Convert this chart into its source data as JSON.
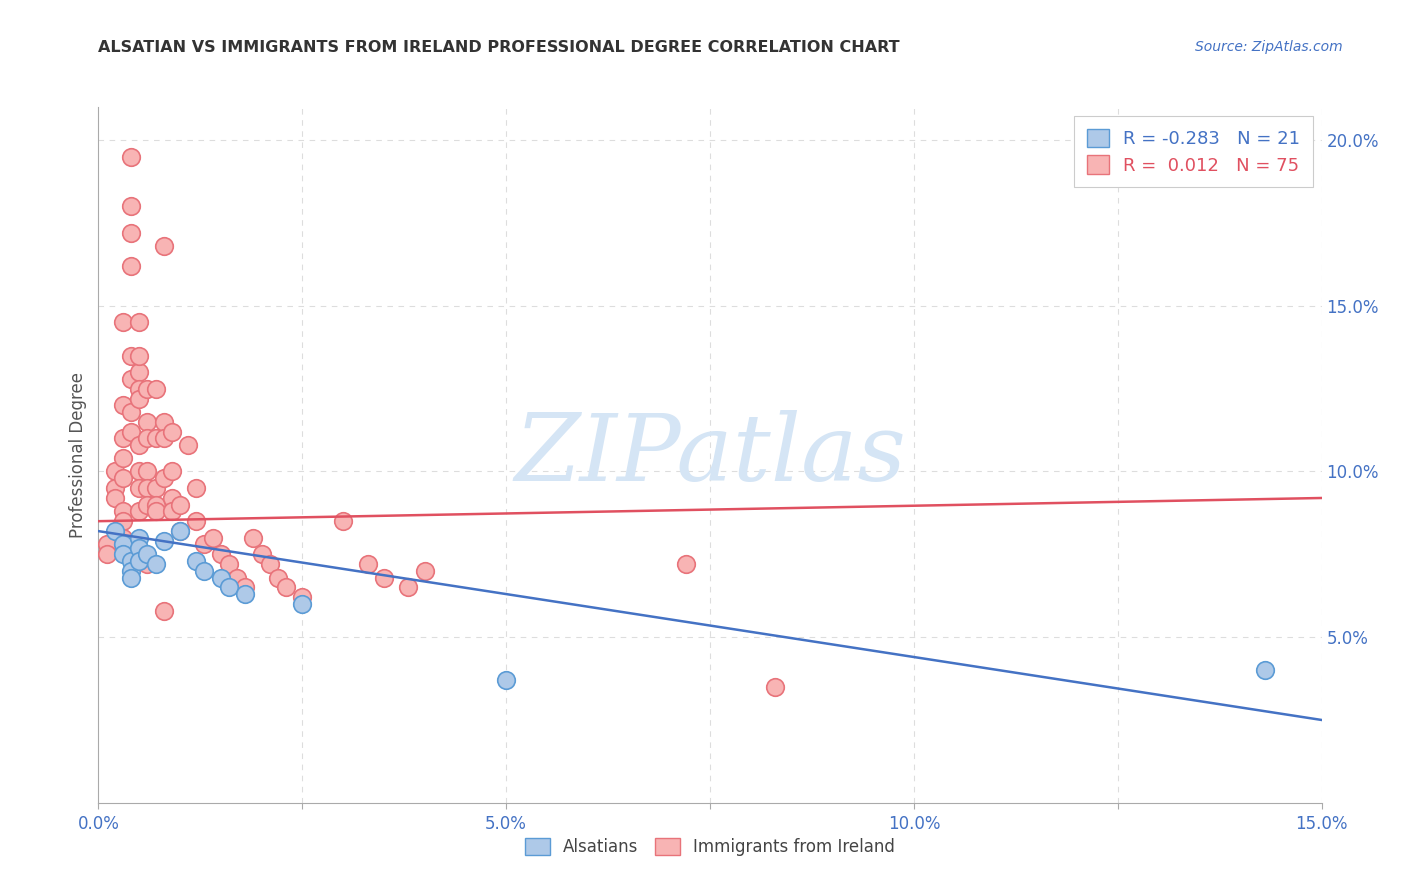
{
  "title": "ALSATIAN VS IMMIGRANTS FROM IRELAND PROFESSIONAL DEGREE CORRELATION CHART",
  "source": "Source: ZipAtlas.com",
  "ylabel": "Professional Degree",
  "xlim": [
    0.0,
    0.15
  ],
  "ylim": [
    0.0,
    0.21
  ],
  "legend_r_blue": "-0.283",
  "legend_n_blue": "21",
  "legend_r_pink": "0.012",
  "legend_n_pink": "75",
  "blue_color": "#aec9e8",
  "pink_color": "#f8b4b4",
  "blue_edge_color": "#5b9bd5",
  "pink_edge_color": "#e8737a",
  "blue_line_color": "#4472c4",
  "pink_line_color": "#e05060",
  "watermark_color": "#d5e5f5",
  "background_color": "#ffffff",
  "grid_color": "#dddddd",
  "blue_points": [
    [
      0.002,
      0.082
    ],
    [
      0.003,
      0.078
    ],
    [
      0.003,
      0.075
    ],
    [
      0.004,
      0.073
    ],
    [
      0.004,
      0.07
    ],
    [
      0.004,
      0.068
    ],
    [
      0.005,
      0.08
    ],
    [
      0.005,
      0.077
    ],
    [
      0.005,
      0.073
    ],
    [
      0.006,
      0.075
    ],
    [
      0.007,
      0.072
    ],
    [
      0.008,
      0.079
    ],
    [
      0.01,
      0.082
    ],
    [
      0.012,
      0.073
    ],
    [
      0.013,
      0.07
    ],
    [
      0.015,
      0.068
    ],
    [
      0.016,
      0.065
    ],
    [
      0.018,
      0.063
    ],
    [
      0.025,
      0.06
    ],
    [
      0.05,
      0.037
    ],
    [
      0.143,
      0.04
    ]
  ],
  "pink_points": [
    [
      0.001,
      0.078
    ],
    [
      0.001,
      0.075
    ],
    [
      0.002,
      0.1
    ],
    [
      0.002,
      0.095
    ],
    [
      0.002,
      0.092
    ],
    [
      0.003,
      0.145
    ],
    [
      0.003,
      0.12
    ],
    [
      0.003,
      0.11
    ],
    [
      0.003,
      0.104
    ],
    [
      0.003,
      0.098
    ],
    [
      0.003,
      0.088
    ],
    [
      0.003,
      0.085
    ],
    [
      0.003,
      0.08
    ],
    [
      0.004,
      0.195
    ],
    [
      0.004,
      0.18
    ],
    [
      0.004,
      0.172
    ],
    [
      0.004,
      0.162
    ],
    [
      0.004,
      0.135
    ],
    [
      0.004,
      0.128
    ],
    [
      0.004,
      0.118
    ],
    [
      0.004,
      0.112
    ],
    [
      0.005,
      0.145
    ],
    [
      0.005,
      0.13
    ],
    [
      0.005,
      0.125
    ],
    [
      0.005,
      0.122
    ],
    [
      0.005,
      0.108
    ],
    [
      0.005,
      0.1
    ],
    [
      0.005,
      0.095
    ],
    [
      0.005,
      0.088
    ],
    [
      0.005,
      0.135
    ],
    [
      0.006,
      0.125
    ],
    [
      0.006,
      0.115
    ],
    [
      0.006,
      0.11
    ],
    [
      0.006,
      0.1
    ],
    [
      0.006,
      0.095
    ],
    [
      0.006,
      0.09
    ],
    [
      0.006,
      0.072
    ],
    [
      0.007,
      0.125
    ],
    [
      0.007,
      0.11
    ],
    [
      0.007,
      0.095
    ],
    [
      0.007,
      0.09
    ],
    [
      0.007,
      0.088
    ],
    [
      0.008,
      0.168
    ],
    [
      0.008,
      0.115
    ],
    [
      0.008,
      0.11
    ],
    [
      0.008,
      0.098
    ],
    [
      0.008,
      0.058
    ],
    [
      0.009,
      0.112
    ],
    [
      0.009,
      0.1
    ],
    [
      0.009,
      0.092
    ],
    [
      0.009,
      0.088
    ],
    [
      0.01,
      0.09
    ],
    [
      0.01,
      0.082
    ],
    [
      0.011,
      0.108
    ],
    [
      0.012,
      0.095
    ],
    [
      0.012,
      0.085
    ],
    [
      0.013,
      0.078
    ],
    [
      0.014,
      0.08
    ],
    [
      0.015,
      0.075
    ],
    [
      0.016,
      0.072
    ],
    [
      0.017,
      0.068
    ],
    [
      0.018,
      0.065
    ],
    [
      0.019,
      0.08
    ],
    [
      0.02,
      0.075
    ],
    [
      0.021,
      0.072
    ],
    [
      0.022,
      0.068
    ],
    [
      0.023,
      0.065
    ],
    [
      0.025,
      0.062
    ],
    [
      0.03,
      0.085
    ],
    [
      0.033,
      0.072
    ],
    [
      0.035,
      0.068
    ],
    [
      0.038,
      0.065
    ],
    [
      0.04,
      0.07
    ],
    [
      0.072,
      0.072
    ],
    [
      0.083,
      0.035
    ]
  ],
  "blue_line_x": [
    0.0,
    0.15
  ],
  "blue_line_y": [
    0.082,
    0.025
  ],
  "pink_line_x": [
    0.0,
    0.15
  ],
  "pink_line_y": [
    0.085,
    0.092
  ]
}
